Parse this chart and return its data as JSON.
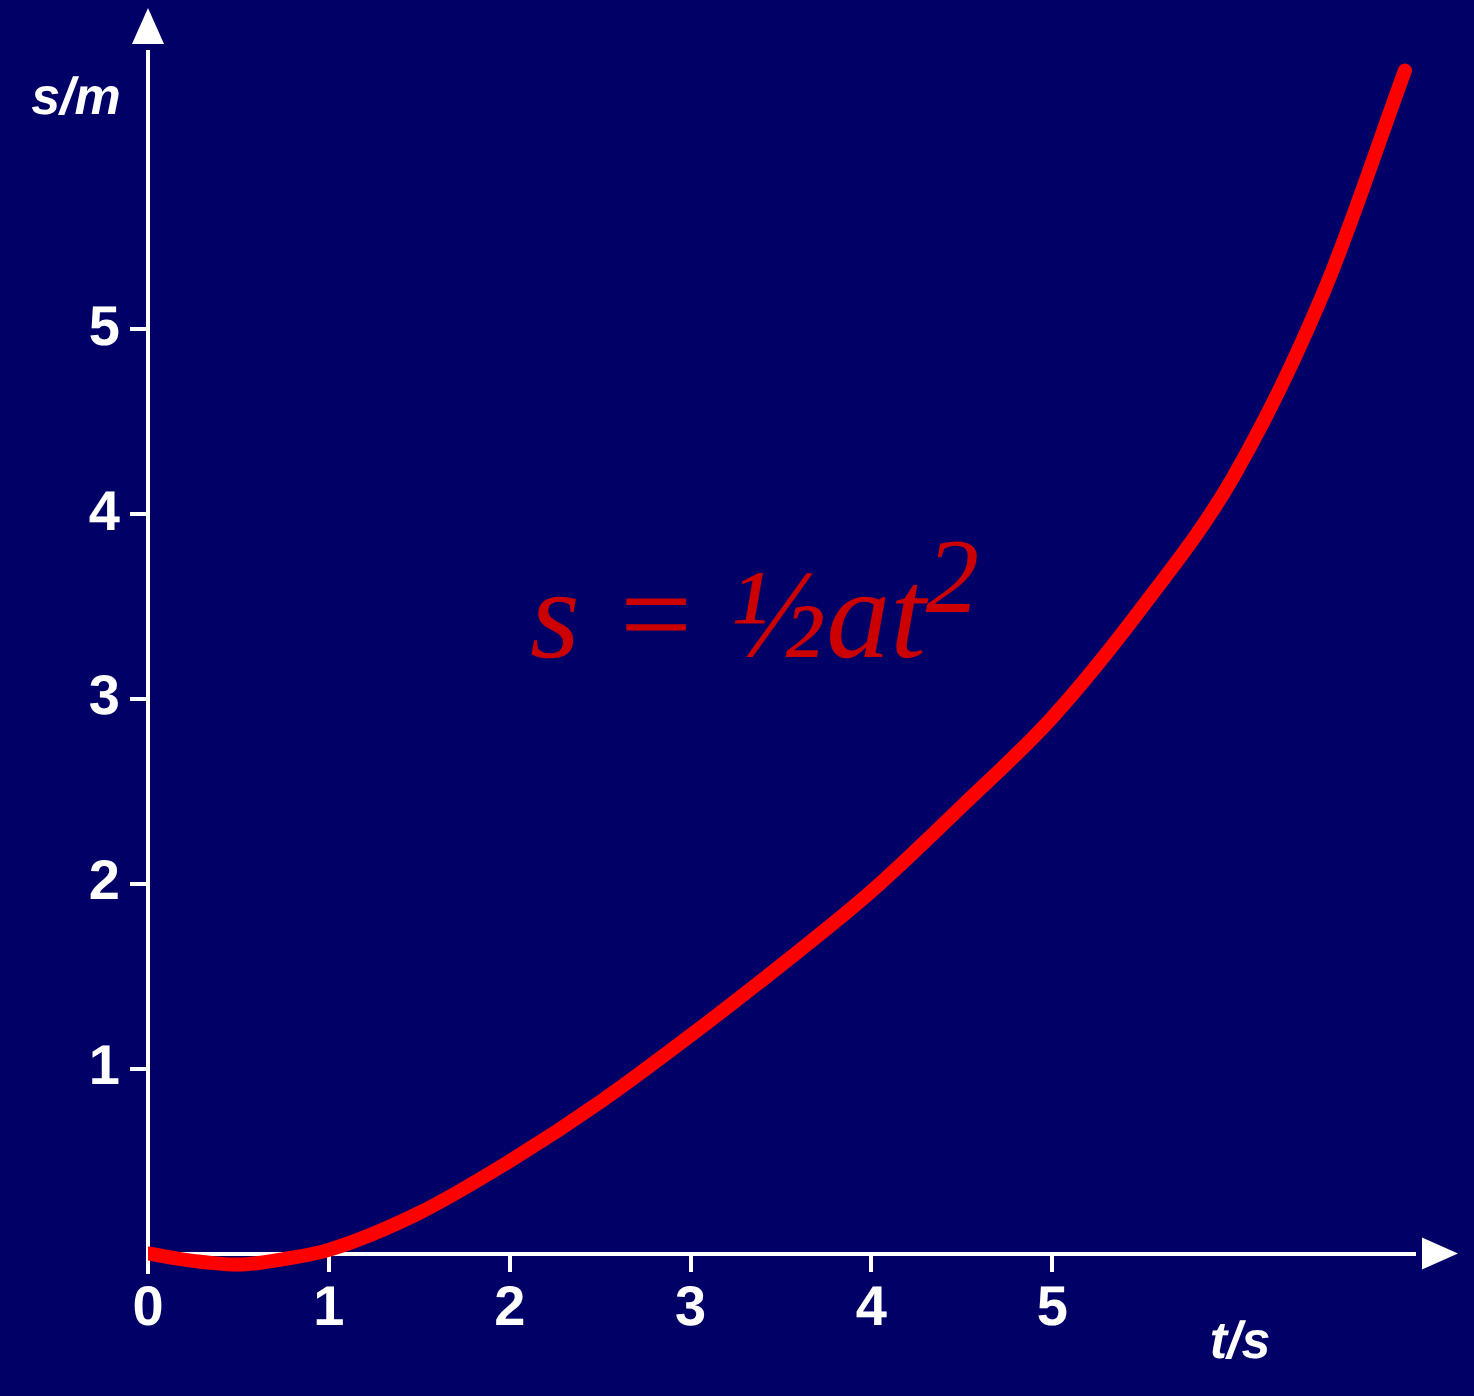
{
  "chart_data": {
    "type": "line",
    "xlabel": "t/s",
    "ylabel": "s/m",
    "x": [
      0,
      0.25,
      0.5,
      0.75,
      1,
      1.5,
      2,
      2.5,
      3,
      3.5,
      4,
      4.5,
      5,
      5.5,
      6,
      6.5,
      6.95
    ],
    "series": [
      {
        "color": "#ff0000",
        "values": [
          0,
          -0.04,
          -0.06,
          -0.03,
          0.02,
          0.22,
          0.5,
          0.82,
          1.18,
          1.56,
          1.96,
          2.42,
          2.9,
          3.5,
          4.2,
          5.2,
          6.4
        ]
      }
    ],
    "xlim": [
      0,
      7
    ],
    "ylim": [
      -0.1,
      6.5
    ],
    "xticks": [
      0,
      1,
      2,
      3,
      4,
      5
    ],
    "yticks": [
      1,
      2,
      3,
      4,
      5
    ],
    "annotations": [
      "s = ½at$^{2}$"
    ],
    "legend": false,
    "grid": false
  }
}
